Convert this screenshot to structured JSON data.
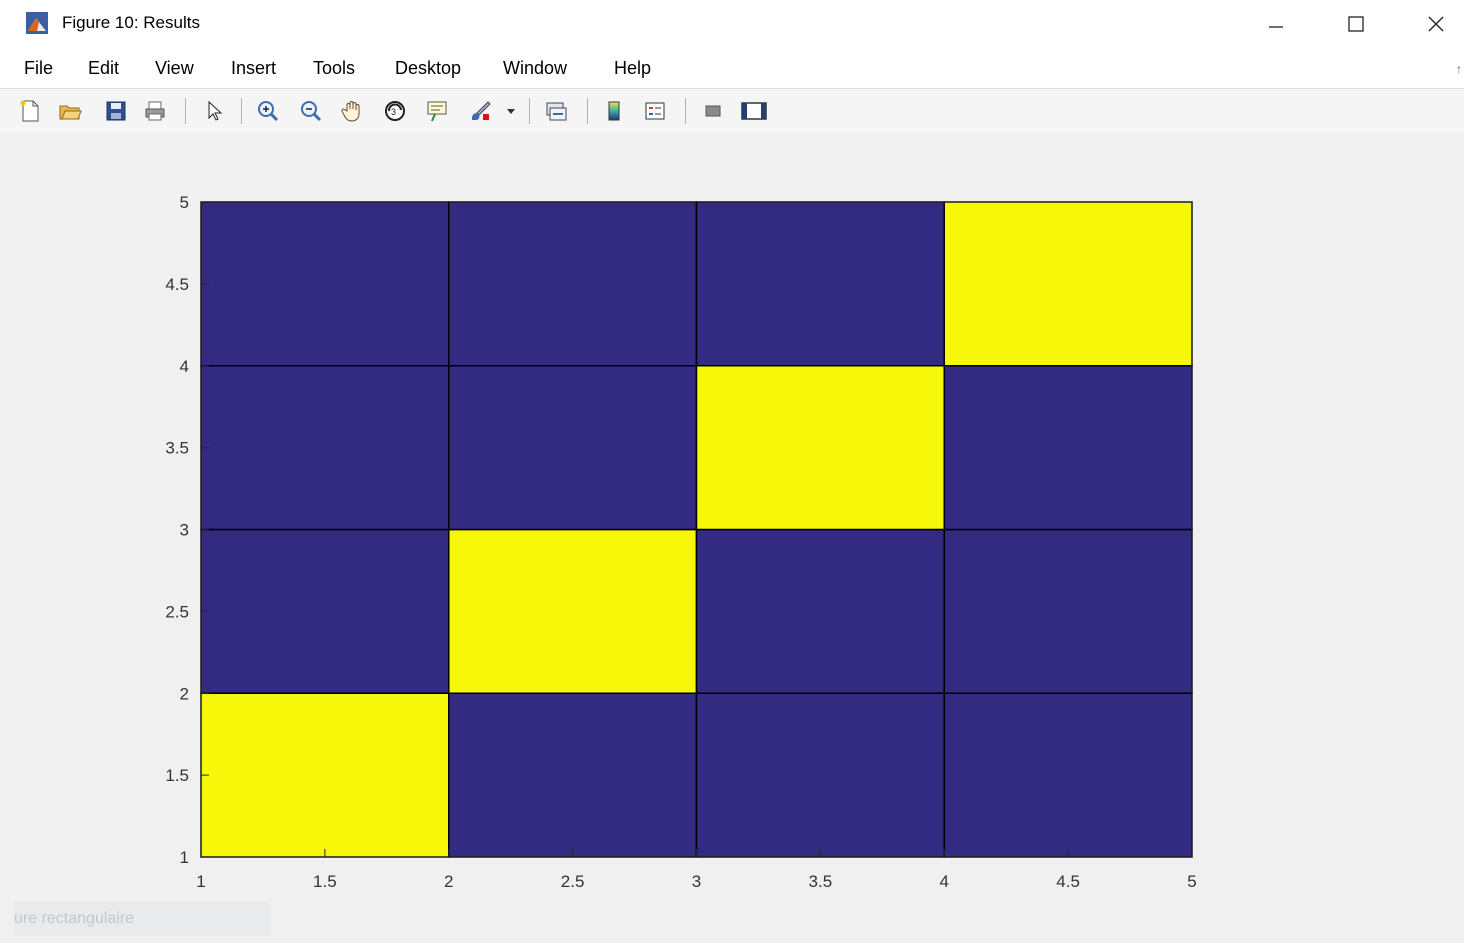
{
  "window": {
    "title": "Figure 10: Results",
    "controls": {
      "minimize": "—",
      "maximize": "☐",
      "close": "✕"
    }
  },
  "menu": [
    "File",
    "Edit",
    "View",
    "Insert",
    "Tools",
    "Desktop",
    "Window",
    "Help"
  ],
  "toolbar": {
    "groups": [
      [
        "new-figure-icon",
        "open-file-icon",
        "save-icon",
        "print-icon"
      ],
      [
        "select-arrow-icon"
      ],
      [
        "zoom-in-icon",
        "zoom-out-icon",
        "pan-hand-icon",
        "rotate-3d-icon",
        "data-cursor-icon",
        "brush-icon"
      ],
      [
        "link-plot-icon"
      ],
      [
        "colorbar-icon",
        "legend-icon"
      ],
      [
        "hide-plot-tools-icon",
        "show-plot-tools-icon"
      ]
    ]
  },
  "status_hint": "ure rectangulaire",
  "colors": {
    "low": "#332a82",
    "high": "#f7f70a",
    "edge": "#000000"
  },
  "chart_data": {
    "type": "heatmap",
    "title": "",
    "xlabel": "",
    "ylabel": "",
    "xlim": [
      1,
      5
    ],
    "ylim": [
      1,
      5
    ],
    "x_ticks": [
      "1",
      "1.5",
      "2",
      "2.5",
      "3",
      "3.5",
      "4",
      "4.5",
      "5"
    ],
    "y_ticks": [
      "1",
      "1.5",
      "2",
      "2.5",
      "3",
      "3.5",
      "4",
      "4.5",
      "5"
    ],
    "cells": [
      [
        1,
        0,
        0,
        0
      ],
      [
        0,
        1,
        0,
        0
      ],
      [
        0,
        0,
        1,
        0
      ],
      [
        0,
        0,
        0,
        1
      ]
    ],
    "cells_note_order": "rows from y=1 upward, columns from x=1 rightward",
    "grid": true
  }
}
